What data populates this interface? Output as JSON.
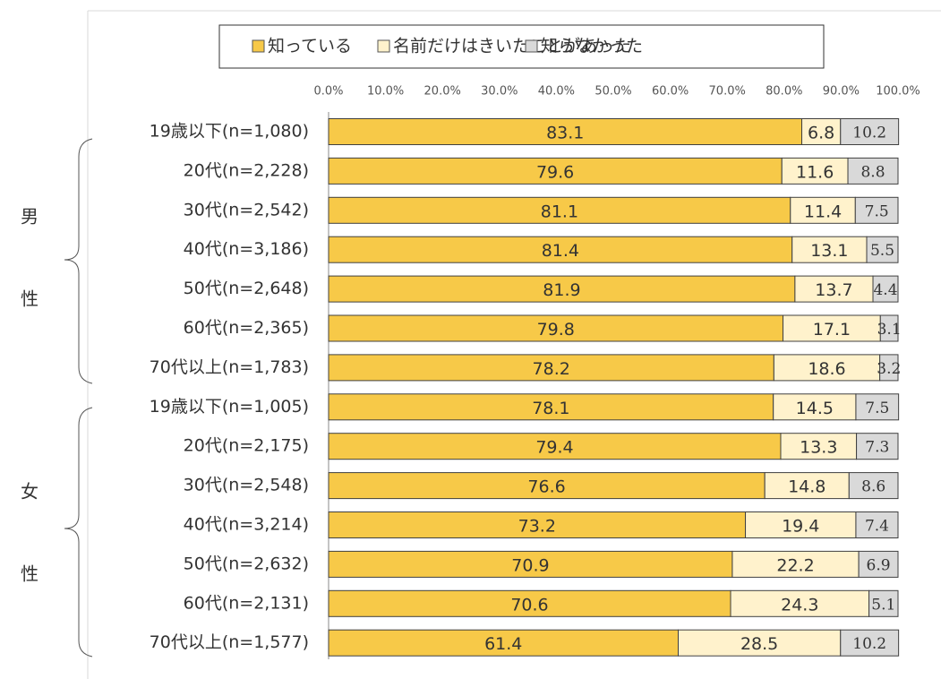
{
  "chart_data": {
    "type": "stacked-bar-horizontal",
    "categories": [
      "19歳以下(n=1,080)",
      "20代(n=2,228)",
      "30代(n=2,542)",
      "40代(n=3,186)",
      "50代(n=2,648)",
      "60代(n=2,365)",
      "70代以上(n=1,783)",
      "19歳以下(n=1,005)",
      "20代(n=2,175)",
      "30代(n=2,548)",
      "40代(n=3,214)",
      "50代(n=2,632)",
      "60代(n=2,131)",
      "70代以上(n=1,577)"
    ],
    "groups": [
      {
        "name": "男性",
        "start": 0,
        "end": 6
      },
      {
        "name": "女性",
        "start": 7,
        "end": 13
      }
    ],
    "series": [
      {
        "name": "知っている",
        "color": "#f7c948",
        "values": [
          83.1,
          79.6,
          81.1,
          81.4,
          81.9,
          79.8,
          78.2,
          78.1,
          79.4,
          76.6,
          73.2,
          70.9,
          70.6,
          61.4
        ]
      },
      {
        "name": "名前だけはきいたことがあった",
        "color": "#fff2cc",
        "values": [
          6.8,
          11.6,
          11.4,
          13.1,
          13.7,
          17.1,
          18.6,
          14.5,
          13.3,
          14.8,
          19.4,
          22.2,
          24.3,
          28.5
        ]
      },
      {
        "name": "知らなかった",
        "color": "#d9d9d9",
        "values": [
          10.2,
          8.8,
          7.5,
          5.5,
          4.4,
          3.1,
          3.2,
          7.5,
          7.3,
          8.6,
          7.4,
          6.9,
          5.1,
          10.2
        ]
      }
    ],
    "xlim": [
      0,
      100
    ],
    "xticks": [
      {
        "value": 0,
        "label": "0.0%"
      },
      {
        "value": 10,
        "label": "10.0%"
      },
      {
        "value": 20,
        "label": "20.0%"
      },
      {
        "value": 30,
        "label": "30.0%"
      },
      {
        "value": 40,
        "label": "40.0%"
      },
      {
        "value": 50,
        "label": "50.0%"
      },
      {
        "value": 60,
        "label": "60.0%"
      },
      {
        "value": 70,
        "label": "70.0%"
      },
      {
        "value": 80,
        "label": "80.0%"
      },
      {
        "value": 90,
        "label": "90.0%"
      },
      {
        "value": 100,
        "label": "100.0%"
      }
    ],
    "legend": "top"
  }
}
